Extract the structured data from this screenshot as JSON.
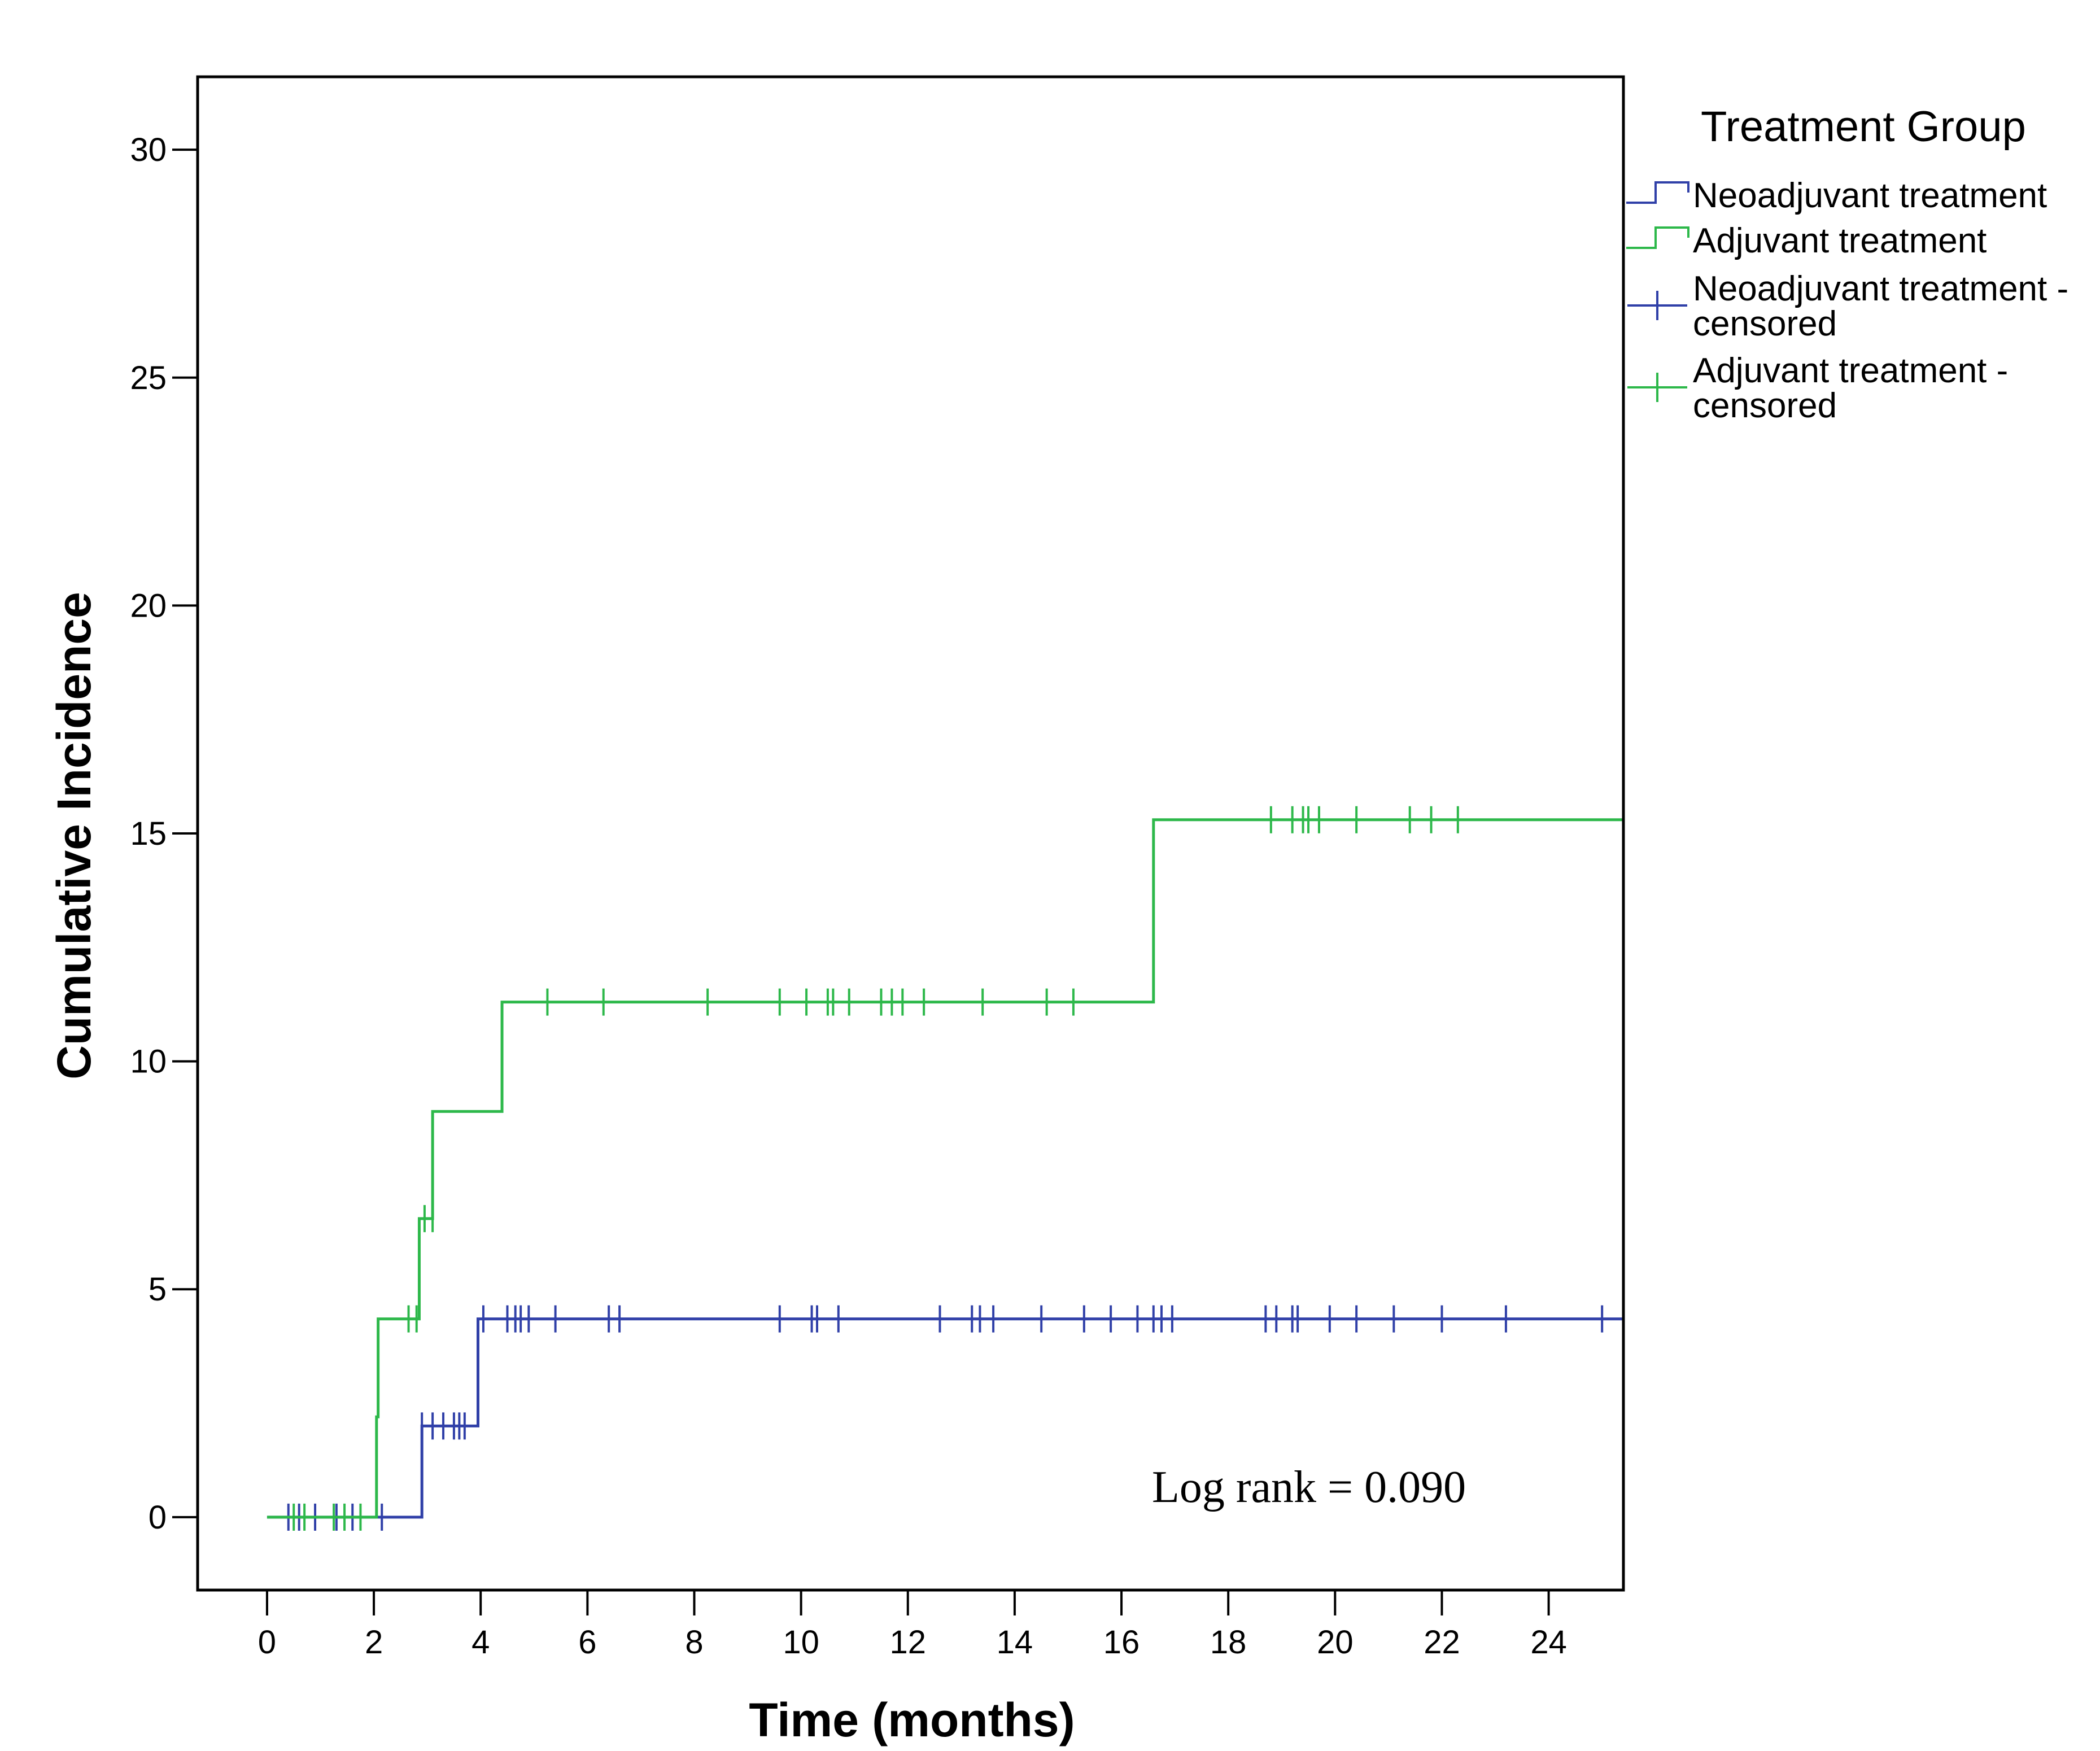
{
  "chart_data": {
    "type": "line",
    "subtype": "step (cumulative incidence)",
    "xlabel": "Time (months)",
    "ylabel": "Cumulative Incidence",
    "xlim": [
      -1.3,
      25.4
    ],
    "ylim": [
      -1.6,
      31.6
    ],
    "xticks": [
      0,
      2,
      4,
      6,
      8,
      10,
      12,
      14,
      16,
      18,
      20,
      22,
      24
    ],
    "yticks": [
      0,
      5,
      10,
      15,
      20,
      25,
      30
    ],
    "legend": {
      "title": "Treatment Group",
      "position": "outside-right",
      "entries": [
        {
          "kind": "line",
          "series": "neoadjuvant",
          "lines": [
            "Neoadjuvant treatment"
          ]
        },
        {
          "kind": "line",
          "series": "adjuvant",
          "lines": [
            "Adjuvant treatment"
          ]
        },
        {
          "kind": "censor",
          "series": "neoadjuvant",
          "lines": [
            "Neoadjuvant treatment -",
            "censored"
          ]
        },
        {
          "kind": "censor",
          "series": "adjuvant",
          "lines": [
            "Adjuvant treatment -",
            "censored"
          ]
        }
      ]
    },
    "annotation": "Log rank = 0.090",
    "series": [
      {
        "id": "neoadjuvant",
        "name": "Neoadjuvant treatment",
        "color": "#3040a8",
        "steps": [
          [
            0,
            0
          ],
          [
            2.9,
            2.0
          ],
          [
            3.95,
            4.35
          ]
        ],
        "end_x": 25.4,
        "censored": [
          0.4,
          0.6,
          0.9,
          1.3,
          1.6,
          2.15,
          2.9,
          3.1,
          3.3,
          3.5,
          3.6,
          3.7,
          4.05,
          4.5,
          4.65,
          4.75,
          4.9,
          5.4,
          6.4,
          6.6,
          9.6,
          10.2,
          10.3,
          10.7,
          12.6,
          13.2,
          13.35,
          13.6,
          14.5,
          15.3,
          15.8,
          16.3,
          16.6,
          16.75,
          16.95,
          18.7,
          18.9,
          19.2,
          19.3,
          19.9,
          20.4,
          21.1,
          22.0,
          23.2,
          25.0
        ],
        "censored_y": [
          0,
          0,
          0,
          0,
          0,
          0,
          2.0,
          2.0,
          2.0,
          2.0,
          2.0,
          2.0,
          4.35,
          4.35,
          4.35,
          4.35,
          4.35,
          4.35,
          4.35,
          4.35,
          4.35,
          4.35,
          4.35,
          4.35,
          4.35,
          4.35,
          4.35,
          4.35,
          4.35,
          4.35,
          4.35,
          4.35,
          4.35,
          4.35,
          4.35,
          4.35,
          4.35,
          4.35,
          4.35,
          4.35,
          4.35,
          4.35,
          4.35,
          4.35,
          4.35
        ]
      },
      {
        "id": "adjuvant",
        "name": "Adjuvant treatment",
        "color": "#2db84a",
        "steps": [
          [
            0,
            0
          ],
          [
            2.05,
            2.2
          ],
          [
            2.08,
            4.35
          ],
          [
            2.85,
            6.55
          ],
          [
            3.1,
            8.9
          ],
          [
            4.4,
            11.3
          ],
          [
            16.6,
            15.3
          ]
        ],
        "end_x": 25.4,
        "censored": [
          0.5,
          0.7,
          1.25,
          1.45,
          1.75,
          2.65,
          2.8,
          2.95,
          3.1,
          5.25,
          6.3,
          8.25,
          9.6,
          10.1,
          10.5,
          10.6,
          10.9,
          11.5,
          11.7,
          11.9,
          12.3,
          13.4,
          14.6,
          15.1,
          18.8,
          19.2,
          19.4,
          19.5,
          19.7,
          20.4,
          21.4,
          21.8,
          22.3
        ],
        "censored_y": [
          0,
          0,
          0,
          0,
          0,
          4.35,
          4.35,
          6.55,
          6.55,
          11.3,
          11.3,
          11.3,
          11.3,
          11.3,
          11.3,
          11.3,
          11.3,
          11.3,
          11.3,
          11.3,
          11.3,
          11.3,
          11.3,
          11.3,
          15.3,
          15.3,
          15.3,
          15.3,
          15.3,
          15.3,
          15.3,
          15.3,
          15.3
        ]
      }
    ]
  }
}
